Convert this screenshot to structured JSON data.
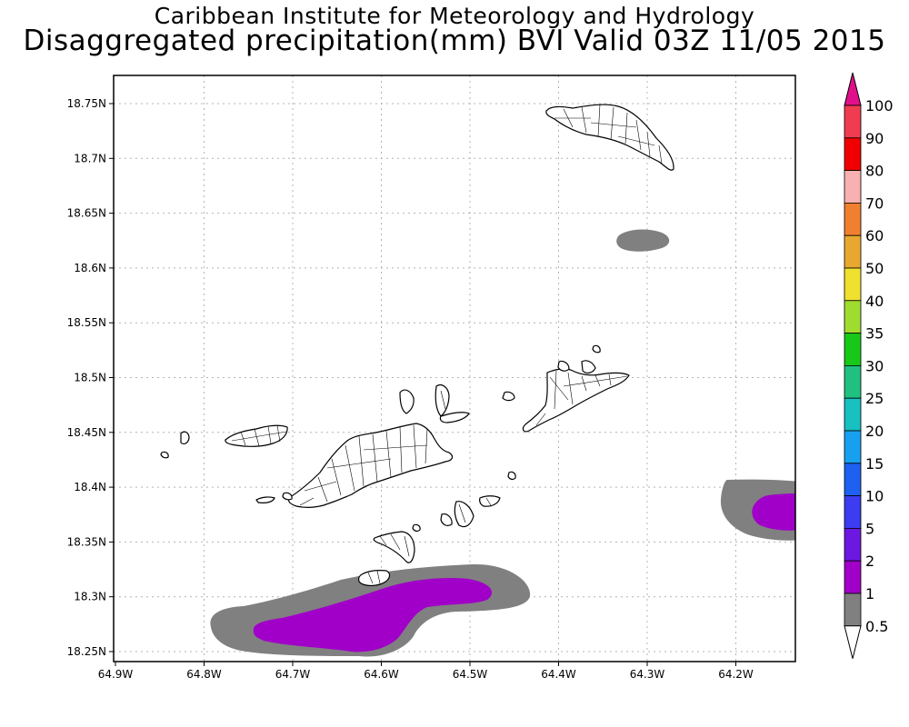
{
  "title_line1": "Caribbean Institute for Meteorology and Hydrology",
  "title_line2": "Disaggregated precipitation(mm) BVI Valid 03Z 11/05 2015",
  "axes": {
    "lon_ticks": [
      "64.9W",
      "64.8W",
      "64.7W",
      "64.6W",
      "64.5W",
      "64.4W",
      "64.3W",
      "64.2W"
    ],
    "lat_ticks": [
      "18.75N",
      "18.7N",
      "18.65N",
      "18.6N",
      "18.55N",
      "18.5N",
      "18.45N",
      "18.4N",
      "18.35N",
      "18.3N",
      "18.25N"
    ],
    "grid": true
  },
  "colorbar": {
    "labels": [
      "100",
      "90",
      "80",
      "70",
      "60",
      "50",
      "40",
      "35",
      "30",
      "25",
      "20",
      "15",
      "10",
      "5",
      "2",
      "1",
      "0.5"
    ],
    "colors": [
      "#f03c50",
      "#f00000",
      "#f8b0b0",
      "#f08030",
      "#e8a830",
      "#f0e030",
      "#a0dc30",
      "#18c818",
      "#20c080",
      "#18c0c0",
      "#18a0f0",
      "#1e60f0",
      "#3c3cf0",
      "#6c18e0",
      "#a000c8",
      "#808080"
    ],
    "overflow_color": "#e0108a",
    "underflow_color": "#ffffff"
  },
  "precip_colors": {
    "light": "#808080",
    "heavy": "#a000c8"
  }
}
